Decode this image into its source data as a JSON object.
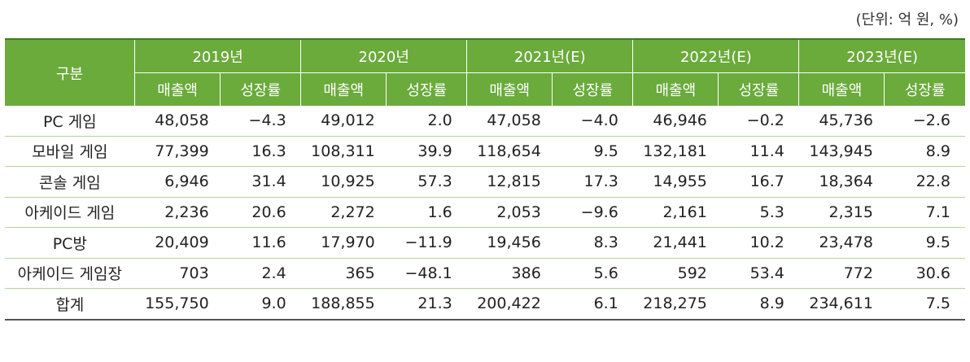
{
  "unit_note": "(단위: 억 원, %)",
  "header": {
    "corner": "구분",
    "years": [
      "2019년",
      "2020년",
      "2021년(E)",
      "2022년(E)",
      "2023년(E)"
    ],
    "sub": [
      "매출액",
      "성장률"
    ]
  },
  "rows": [
    {
      "label": "PC 게임",
      "cells": [
        "48,058",
        "−4.3",
        "49,012",
        "2.0",
        "47,058",
        "−4.0",
        "46,946",
        "−0.2",
        "45,736",
        "−2.6"
      ]
    },
    {
      "label": "모바일 게임",
      "cells": [
        "77,399",
        "16.3",
        "108,311",
        "39.9",
        "118,654",
        "9.5",
        "132,181",
        "11.4",
        "143,945",
        "8.9"
      ]
    },
    {
      "label": "콘솔 게임",
      "cells": [
        "6,946",
        "31.4",
        "10,925",
        "57.3",
        "12,815",
        "17.3",
        "14,955",
        "16.7",
        "18,364",
        "22.8"
      ]
    },
    {
      "label": "아케이드 게임",
      "cells": [
        "2,236",
        "20.6",
        "2,272",
        "1.6",
        "2,053",
        "−9.6",
        "2,161",
        "5.3",
        "2,315",
        "7.1"
      ]
    },
    {
      "label": "PC방",
      "cells": [
        "20,409",
        "11.6",
        "17,970",
        "−11.9",
        "19,456",
        "8.3",
        "21,441",
        "10.2",
        "23,478",
        "9.5"
      ]
    },
    {
      "label": "아케이드 게임장",
      "cells": [
        "703",
        "2.4",
        "365",
        "−48.1",
        "386",
        "5.6",
        "592",
        "53.4",
        "772",
        "30.6"
      ]
    },
    {
      "label": "합계",
      "cells": [
        "155,750",
        "9.0",
        "188,855",
        "21.3",
        "200,422",
        "6.1",
        "218,275",
        "8.9",
        "234,611",
        "7.5"
      ]
    }
  ],
  "colors": {
    "header_bg": "#6aab3b",
    "rule": "#b6d39b"
  }
}
